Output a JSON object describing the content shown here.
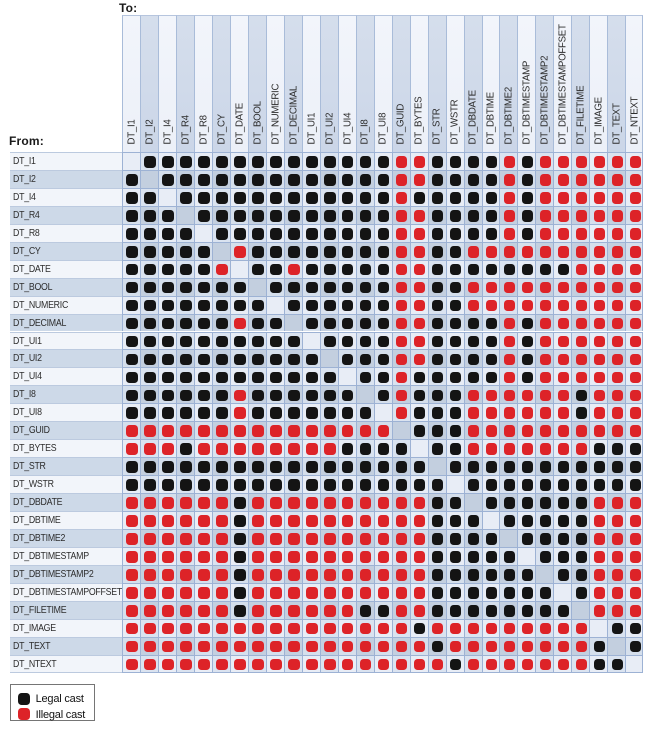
{
  "labels": {
    "to": "To:",
    "from": "From:"
  },
  "legend": {
    "items": [
      {
        "label": "Legal cast",
        "color": "#141414"
      },
      {
        "label": "Illegal cast",
        "color": "#dd2328"
      }
    ]
  },
  "chart_data": {
    "type": "heatmap",
    "x_axis_label": "To:",
    "y_axis_label": "From:",
    "legend_position": "bottom-left",
    "cell_encoding": {
      "L": "legal cast (black dot)",
      "X": "illegal cast (red dot)",
      ".": "same type - empty diagonal cell"
    },
    "columns": [
      "DT_I1",
      "DT_I2",
      "DT_I4",
      "DT_R4",
      "DT_R8",
      "DT_CY",
      "DT_DATE",
      "DT_BOOL",
      "DT_NUMERIC",
      "DT_DECIMAL",
      "DT_UI1",
      "DT_UI2",
      "DT_UI4",
      "DT_I8",
      "DT_UI8",
      "DT_GUID",
      "DT_BYTES",
      "DT_STR",
      "DT_WSTR",
      "DT_DBDATE",
      "DT_DBTIME",
      "DT_DBTIME2",
      "DT_DBTIMESTAMP",
      "DT_DBTIMESTAMP2",
      "DT_DBTIMESTAMPOFFSET",
      "DT_FILETIME",
      "DT_IMAGE",
      "DT_TEXT",
      "DT_NTEXT"
    ],
    "rows": [
      "DT_I1",
      "DT_I2",
      "DT_I4",
      "DT_R4",
      "DT_R8",
      "DT_CY",
      "DT_DATE",
      "DT_BOOL",
      "DT_NUMERIC",
      "DT_DECIMAL",
      "DT_UI1",
      "DT_UI2",
      "DT_UI4",
      "DT_I8",
      "DT_UI8",
      "DT_GUID",
      "DT_BYTES",
      "DT_STR",
      "DT_WSTR",
      "DT_DBDATE",
      "DT_DBTIME",
      "DT_DBTIME2",
      "DT_DBTIMESTAMP",
      "DT_DBTIMESTAMP2",
      "DT_DBTIMESTAMPOFFSET",
      "DT_FILETIME",
      "DT_IMAGE",
      "DT_TEXT",
      "DT_NTEXT"
    ],
    "values": [
      ".LLLLLLLLLLLLLLXXLLLLXLXXXXXX",
      "L.LLLLLLLLLLLLLXXLLLLXLXXXXXX",
      "LL.LLLLLLLLLLLLXLLLLLXLXXXXXX",
      "LLL.LLLLLLLLLLLXXLLLLXLXXXXXX",
      "LLLL.LLLLLLLLLLXXLLLLXLXXXXXX",
      "LLLLL.XLLLLLLLLXXLLXXXXXXXXXX",
      "LLLLLX.LLXLLLLLXXLLLLLLLLXXXX",
      "LLLLLLL.LLLLLLLXXLLXXXXXXXXXX",
      "LLLLLLLL.LLLLLLXXLLXXXXXXXXXX",
      "LLLLLLXLL.LLLLLXXLLLLXLXXXXXX",
      "LLLLLLLLLL.LLLLXXLLLLXLXXXXXX",
      "LLLLLLLLLLL.LLLXXLLLLXLXXXXXX",
      "LLLLLLLLLLLL.LLXLLLLLXLXXXXXX",
      "LLLLLLXLLLLLL.LXLLLXXXXXXLXXX",
      "LLLLLLXLLLLLLL.XLLLXXXXXXLXXX",
      "XXXXXXXXXXXXXXX.LLLXXXXXXXXXX",
      "XXXLXXXXXXXXLLLL.LLXXXXXXXLLL",
      "LLLLLLLLLLLLLLLLL.LLLLLLLLLLL",
      "LLLLLLLLLLLLLLLLLL.LLLLLLLLLL",
      "XXXXXXLXXXXXXXXXXLL.LLLLLLXXX",
      "XXXXXXLXXXXXXXXXXLLL.LLLLLXXX",
      "XXXXXXLXXXXXXXXXXLLLL.LLLLXXX",
      "XXXXXXLXXXXXXXXXXLLLLL.LLLXXX",
      "XXXXXXLXXXXXXXXXXLLLLLL.LLXXX",
      "XXXXXXLXXXXXXXXXXLLLLLLL.LXXX",
      "XXXXXXLXXXXXXLLXXLLLLLLLL.XXX",
      "XXXXXXXXXXXXXXXXLXXXXXXXXX.LL",
      "XXXXXXXXXXXXXXXXXLXXXXXXXXL.L",
      "XXXXXXXXXXXXXXXXXXLXXXXXXXLL."
    ]
  }
}
